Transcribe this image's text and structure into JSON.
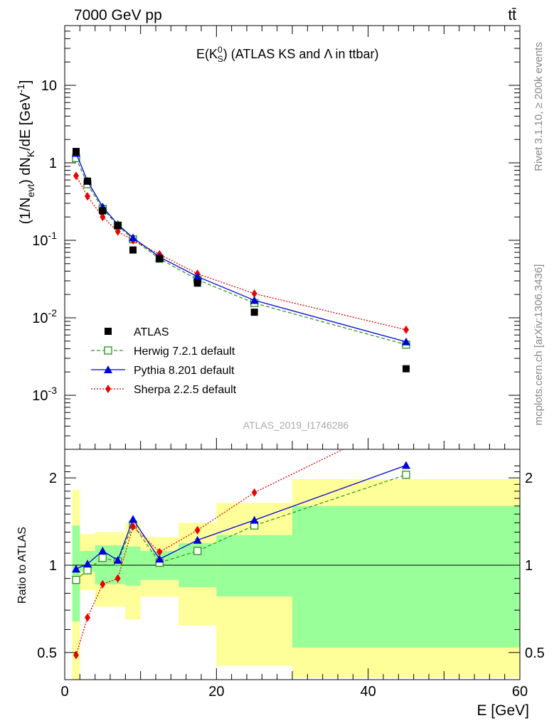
{
  "header": {
    "left": "7000 GeV pp",
    "right": "tt̄",
    "side_top": "Rivet 3.1.10, ≥ 200k events",
    "side_bottom": "mcplots.cern.ch [arXiv:1306.3436]",
    "watermark": "ATLAS_2019_I1746286"
  },
  "chart_data": [
    {
      "type": "scatter",
      "panel": "main",
      "title": "E(K_S^0) (ATLAS KS and Λ in ttbar)",
      "xlabel": "E [GeV]",
      "ylabel": "(1/N_evt) dN_K/dE [GeV^-1]",
      "xlim": [
        0,
        60
      ],
      "ylim": [
        0.0002,
        80
      ],
      "yscale": "log",
      "yticks": [
        "10^-3",
        "10^-2",
        "10^-1",
        "1",
        "10"
      ],
      "legend_position": "bottom-left",
      "x": [
        1.5,
        3,
        5,
        7,
        9,
        12.5,
        17.5,
        25,
        45
      ],
      "series": [
        {
          "name": "ATLAS",
          "color": "#000000",
          "marker": "square-filled",
          "line": "none",
          "values": [
            1.4,
            0.58,
            0.24,
            0.155,
            0.075,
            0.058,
            0.028,
            0.0118,
            0.0022
          ]
        },
        {
          "name": "Herwig 7.2.1 default",
          "color": "#339922",
          "marker": "square-open",
          "line": "dashed",
          "values": [
            1.15,
            0.53,
            0.255,
            0.155,
            0.103,
            0.058,
            0.031,
            0.0155,
            0.0045
          ]
        },
        {
          "name": "Pythia 8.201 default",
          "color": "#0000dd",
          "marker": "triangle-filled",
          "line": "solid",
          "values": [
            1.33,
            0.58,
            0.27,
            0.16,
            0.108,
            0.061,
            0.034,
            0.0168,
            0.0049
          ]
        },
        {
          "name": "Sherpa 2.2.5 default",
          "color": "#ee0000",
          "marker": "diamond-filled",
          "line": "dotted",
          "values": [
            0.68,
            0.37,
            0.2,
            0.13,
            0.1,
            0.066,
            0.037,
            0.0205,
            0.007
          ]
        }
      ]
    },
    {
      "type": "line",
      "panel": "ratio",
      "xlabel": "E [GeV]",
      "ylabel": "Ratio to ATLAS",
      "xlim": [
        0,
        60
      ],
      "ylim": [
        0.38,
        2.25
      ],
      "xticks": [
        "0",
        "20",
        "40",
        "60"
      ],
      "yticks": [
        "0.5",
        "1",
        "2"
      ],
      "x": [
        1.5,
        3,
        5,
        7,
        9,
        12.5,
        17.5,
        25,
        45
      ],
      "uncertainty_bins": {
        "edges": [
          1,
          2,
          4,
          6,
          8,
          10,
          15,
          20,
          30,
          60
        ],
        "inner": [
          [
            0.64,
            1.37
          ],
          [
            0.95,
            1.12
          ],
          [
            0.86,
            1.17
          ],
          [
            0.86,
            1.17
          ],
          [
            0.85,
            1.16
          ],
          [
            0.89,
            1.12
          ],
          [
            0.84,
            1.19
          ],
          [
            0.78,
            1.27
          ],
          [
            0.52,
            1.6
          ]
        ],
        "outer": [
          [
            0.4,
            1.82
          ],
          [
            0.82,
            1.28
          ],
          [
            0.72,
            1.3
          ],
          [
            0.72,
            1.3
          ],
          [
            0.65,
            1.4
          ],
          [
            0.78,
            1.25
          ],
          [
            0.62,
            1.4
          ],
          [
            0.45,
            1.64
          ],
          [
            0.41,
            1.98
          ]
        ],
        "inner_color": "#99ff99",
        "outer_color": "#ffff99"
      },
      "series": [
        {
          "name": "Herwig 7.2.1 default",
          "color": "#339922",
          "values": [
            0.89,
            0.96,
            1.06,
            1.03,
            1.38,
            1.02,
            1.12,
            1.37,
            2.05
          ]
        },
        {
          "name": "Pythia 8.201 default",
          "color": "#0000dd",
          "values": [
            0.97,
            1.01,
            1.12,
            1.04,
            1.44,
            1.05,
            1.22,
            1.43,
            2.21
          ]
        },
        {
          "name": "Sherpa 2.2.5 default",
          "color": "#ee0000",
          "values": [
            0.49,
            0.66,
            0.86,
            0.9,
            1.36,
            1.11,
            1.32,
            1.78,
            3.2
          ]
        }
      ]
    }
  ]
}
